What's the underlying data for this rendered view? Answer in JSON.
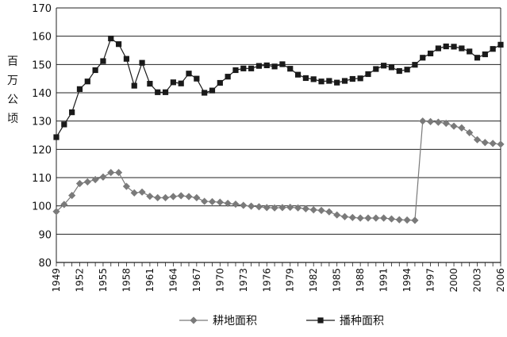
{
  "chart_data": {
    "type": "line",
    "ylabel": "百万公顷",
    "ylim": [
      80,
      170
    ],
    "yticks": [
      80,
      90,
      100,
      110,
      120,
      130,
      140,
      150,
      160,
      170
    ],
    "xlim": [
      1949,
      2006
    ],
    "xticks": [
      "1949",
      "1952",
      "1955",
      "1958",
      "1961",
      "1964",
      "1967",
      "1970",
      "1973",
      "1976",
      "1979",
      "1982",
      "1985",
      "1988",
      "1991",
      "1994",
      "1997",
      "2000",
      "2003",
      "2006"
    ],
    "grid": "horizontal",
    "legend_position": "bottom-center",
    "x": [
      1949,
      1950,
      1951,
      1952,
      1953,
      1954,
      1955,
      1956,
      1957,
      1958,
      1959,
      1960,
      1961,
      1962,
      1963,
      1964,
      1965,
      1966,
      1967,
      1968,
      1969,
      1970,
      1971,
      1972,
      1973,
      1974,
      1975,
      1976,
      1977,
      1978,
      1979,
      1980,
      1981,
      1982,
      1983,
      1984,
      1985,
      1986,
      1987,
      1988,
      1989,
      1990,
      1991,
      1992,
      1993,
      1994,
      1995,
      1996,
      1997,
      1998,
      1999,
      2000,
      2001,
      2002,
      2003,
      2004,
      2005,
      2006
    ],
    "series": [
      {
        "name": "耕地面积",
        "marker": "diamond",
        "color": "#7a7a7a",
        "values": [
          98.0,
          100.5,
          103.7,
          107.9,
          108.5,
          109.3,
          110.2,
          111.8,
          111.8,
          106.9,
          104.6,
          104.9,
          103.4,
          102.9,
          102.9,
          103.3,
          103.6,
          103.3,
          102.9,
          101.6,
          101.5,
          101.3,
          100.9,
          100.6,
          100.2,
          99.9,
          99.7,
          99.4,
          99.3,
          99.4,
          99.5,
          99.3,
          99.0,
          98.6,
          98.4,
          97.9,
          96.8,
          96.2,
          95.9,
          95.7,
          95.7,
          95.7,
          95.7,
          95.4,
          95.1,
          95.0,
          94.9,
          130.0,
          129.8,
          129.6,
          129.2,
          128.2,
          127.6,
          125.9,
          123.4,
          122.4,
          122.1,
          121.8
        ]
      },
      {
        "name": "播种面积",
        "marker": "square",
        "color": "#1a1a1a",
        "values": [
          124.3,
          128.8,
          133.1,
          141.3,
          144.0,
          148.0,
          151.2,
          159.2,
          157.2,
          152.0,
          142.5,
          150.6,
          143.2,
          140.2,
          140.2,
          143.7,
          143.3,
          146.8,
          145.0,
          140.0,
          140.8,
          143.5,
          145.7,
          148.0,
          148.6,
          148.6,
          149.5,
          149.7,
          149.3,
          150.1,
          148.5,
          146.4,
          145.2,
          144.8,
          144.0,
          144.2,
          143.6,
          144.2,
          144.9,
          145.1,
          146.6,
          148.4,
          149.6,
          149.0,
          147.7,
          148.2,
          149.9,
          152.4,
          153.9,
          155.7,
          156.4,
          156.3,
          155.7,
          154.6,
          152.4,
          153.6,
          155.5,
          157.0
        ]
      }
    ]
  }
}
